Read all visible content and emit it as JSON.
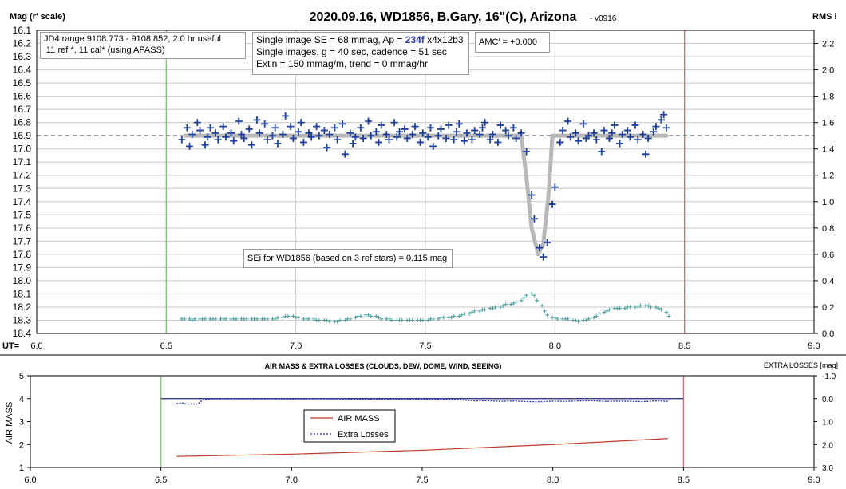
{
  "chart_data": [
    {
      "type": "scatter",
      "title": "2020.09.16, WD1856, B.Gary, 16\"(C), Arizona",
      "version": "- v0916",
      "ylabel_left": "Mag (r' scale)",
      "ylabel_right": "RMS i",
      "xlabel": "UT=",
      "xlim": [
        6.0,
        9.0
      ],
      "x_ticks": [
        "6.0",
        "6.5",
        "7.0",
        "7.5",
        "8.0",
        "8.5",
        "9.0"
      ],
      "ylim_left": [
        16.1,
        18.4
      ],
      "y_ticks_left": [
        "16.1",
        "16.2",
        "16.3",
        "16.4",
        "16.5",
        "16.6",
        "16.7",
        "16.8",
        "16.9",
        "17.0",
        "17.1",
        "17.2",
        "17.3",
        "17.4",
        "17.5",
        "17.6",
        "17.7",
        "17.8",
        "17.9",
        "18.0",
        "18.1",
        "18.2",
        "18.3",
        "18.4"
      ],
      "ylim_right": [
        0.0,
        2.3
      ],
      "y_ticks_right": [
        "0.0",
        "0.2",
        "0.4",
        "0.6",
        "0.8",
        "1.0",
        "1.2",
        "1.4",
        "1.6",
        "1.8",
        "2.0",
        "2.2"
      ],
      "grid": true,
      "vlines": [
        {
          "x": 6.5,
          "color": "#7fc46e"
        },
        {
          "x": 8.5,
          "color": "#e06a6a"
        }
      ],
      "hline": {
        "y": 16.9,
        "style": "dashed"
      },
      "model": {
        "color": "#b8b8b8",
        "x": [
          6.57,
          7.87,
          7.89,
          7.91,
          7.935,
          7.955,
          7.975,
          7.99,
          8.43
        ],
        "y": [
          16.9,
          16.9,
          17.22,
          17.6,
          17.8,
          17.72,
          17.35,
          16.9,
          16.9
        ]
      },
      "series": [
        {
          "name": "mag",
          "marker": "plus",
          "color": "#1f3f9e",
          "x": [
            6.56,
            6.58,
            6.59,
            6.6,
            6.62,
            6.63,
            6.65,
            6.66,
            6.67,
            6.69,
            6.7,
            6.72,
            6.73,
            6.75,
            6.76,
            6.78,
            6.79,
            6.8,
            6.82,
            6.83,
            6.85,
            6.86,
            6.88,
            6.89,
            6.91,
            6.92,
            6.93,
            6.95,
            6.96,
            6.98,
            6.99,
            7.01,
            7.02,
            7.03,
            7.05,
            7.06,
            7.08,
            7.09,
            7.11,
            7.12,
            7.13,
            7.15,
            7.16,
            7.18,
            7.19,
            7.21,
            7.22,
            7.23,
            7.25,
            7.26,
            7.28,
            7.29,
            7.31,
            7.32,
            7.33,
            7.35,
            7.36,
            7.38,
            7.39,
            7.4,
            7.42,
            7.43,
            7.45,
            7.46,
            7.48,
            7.49,
            7.51,
            7.52,
            7.53,
            7.55,
            7.56,
            7.58,
            7.59,
            7.61,
            7.62,
            7.63,
            7.65,
            7.66,
            7.68,
            7.69,
            7.71,
            7.72,
            7.73,
            7.75,
            7.76,
            7.78,
            7.79,
            7.81,
            7.82,
            7.84,
            7.85,
            7.87,
            7.89,
            7.91,
            7.92,
            7.94,
            7.955,
            7.97,
            7.99,
            8.0,
            8.02,
            8.03,
            8.05,
            8.06,
            8.08,
            8.09,
            8.11,
            8.12,
            8.13,
            8.15,
            8.16,
            8.18,
            8.19,
            8.21,
            8.22,
            8.23,
            8.25,
            8.26,
            8.28,
            8.29,
            8.31,
            8.32,
            8.34,
            8.35,
            8.36,
            8.38,
            8.39,
            8.41,
            8.42,
            8.43
          ],
          "y": [
            16.93,
            16.84,
            16.98,
            16.89,
            16.8,
            16.86,
            16.97,
            16.91,
            16.84,
            16.88,
            16.93,
            16.83,
            16.91,
            16.88,
            16.94,
            16.79,
            16.89,
            16.92,
            16.85,
            16.97,
            16.78,
            16.88,
            16.81,
            16.93,
            16.9,
            16.84,
            16.96,
            16.89,
            16.75,
            16.83,
            16.92,
            16.87,
            16.8,
            16.95,
            16.88,
            16.91,
            16.83,
            16.9,
            16.86,
            16.99,
            16.89,
            16.84,
            16.93,
            16.81,
            17.04,
            16.88,
            16.96,
            16.91,
            16.84,
            16.92,
            16.79,
            16.9,
            16.87,
            16.95,
            16.82,
            16.89,
            16.93,
            16.8,
            16.91,
            16.87,
            16.85,
            16.92,
            16.89,
            16.83,
            16.95,
            16.88,
            16.91,
            16.84,
            16.98,
            16.9,
            16.85,
            16.92,
            16.82,
            16.93,
            16.87,
            16.81,
            16.94,
            16.88,
            16.93,
            16.86,
            16.89,
            16.84,
            16.8,
            16.93,
            16.89,
            16.95,
            16.82,
            16.86,
            16.9,
            16.84,
            16.92,
            16.88,
            17.02,
            17.35,
            17.53,
            17.75,
            17.82,
            17.71,
            17.42,
            17.29,
            16.95,
            16.86,
            16.79,
            16.91,
            16.88,
            16.94,
            16.81,
            16.92,
            16.9,
            16.88,
            16.93,
            17.02,
            16.86,
            16.92,
            16.88,
            16.82,
            16.96,
            16.89,
            16.86,
            16.91,
            16.82,
            16.93,
            16.89,
            17.04,
            16.92,
            16.87,
            16.83,
            16.78,
            16.74,
            16.84
          ]
        },
        {
          "name": "RMS",
          "marker": "small-plus",
          "color": "#4a9e9e",
          "axis": "right",
          "x": [
            6.56,
            6.57,
            6.59,
            6.6,
            6.61,
            6.63,
            6.64,
            6.65,
            6.67,
            6.68,
            6.69,
            6.71,
            6.72,
            6.73,
            6.75,
            6.76,
            6.77,
            6.79,
            6.8,
            6.81,
            6.83,
            6.84,
            6.85,
            6.87,
            6.88,
            6.89,
            6.91,
            6.92,
            6.93,
            6.95,
            6.96,
            6.97,
            6.99,
            7.0,
            7.01,
            7.03,
            7.04,
            7.05,
            7.07,
            7.08,
            7.09,
            7.11,
            7.12,
            7.13,
            7.15,
            7.16,
            7.17,
            7.19,
            7.2,
            7.21,
            7.23,
            7.24,
            7.25,
            7.27,
            7.28,
            7.29,
            7.31,
            7.32,
            7.33,
            7.35,
            7.36,
            7.37,
            7.39,
            7.4,
            7.41,
            7.43,
            7.44,
            7.45,
            7.47,
            7.48,
            7.49,
            7.51,
            7.52,
            7.53,
            7.55,
            7.56,
            7.57,
            7.59,
            7.6,
            7.61,
            7.63,
            7.64,
            7.65,
            7.67,
            7.68,
            7.69,
            7.71,
            7.72,
            7.73,
            7.75,
            7.76,
            7.77,
            7.79,
            7.8,
            7.81,
            7.83,
            7.84,
            7.85,
            7.87,
            7.88,
            7.89,
            7.91,
            7.92,
            7.93,
            7.95,
            7.96,
            7.97,
            7.99,
            8.0,
            8.01,
            8.03,
            8.04,
            8.05,
            8.07,
            8.08,
            8.09,
            8.11,
            8.12,
            8.13,
            8.15,
            8.16,
            8.17,
            8.19,
            8.2,
            8.21,
            8.23,
            8.24,
            8.25,
            8.27,
            8.28,
            8.29,
            8.31,
            8.32,
            8.33,
            8.35,
            8.36,
            8.37,
            8.39,
            8.4,
            8.41,
            8.43,
            8.44
          ],
          "y": [
            0.11,
            0.11,
            0.11,
            0.1,
            0.11,
            0.11,
            0.11,
            0.11,
            0.11,
            0.11,
            0.11,
            0.11,
            0.11,
            0.11,
            0.11,
            0.11,
            0.11,
            0.11,
            0.11,
            0.11,
            0.11,
            0.11,
            0.11,
            0.11,
            0.11,
            0.11,
            0.11,
            0.11,
            0.12,
            0.12,
            0.13,
            0.13,
            0.13,
            0.12,
            0.12,
            0.11,
            0.11,
            0.11,
            0.11,
            0.1,
            0.1,
            0.1,
            0.1,
            0.09,
            0.09,
            0.09,
            0.1,
            0.1,
            0.11,
            0.11,
            0.12,
            0.13,
            0.13,
            0.14,
            0.14,
            0.13,
            0.13,
            0.12,
            0.11,
            0.11,
            0.11,
            0.1,
            0.1,
            0.1,
            0.1,
            0.1,
            0.1,
            0.1,
            0.1,
            0.1,
            0.1,
            0.1,
            0.11,
            0.11,
            0.11,
            0.12,
            0.12,
            0.12,
            0.12,
            0.13,
            0.13,
            0.14,
            0.15,
            0.15,
            0.16,
            0.17,
            0.17,
            0.18,
            0.18,
            0.19,
            0.19,
            0.2,
            0.2,
            0.21,
            0.22,
            0.22,
            0.23,
            0.24,
            0.25,
            0.27,
            0.29,
            0.3,
            0.29,
            0.25,
            0.21,
            0.17,
            0.14,
            0.12,
            0.12,
            0.11,
            0.11,
            0.11,
            0.11,
            0.1,
            0.1,
            0.09,
            0.1,
            0.1,
            0.11,
            0.12,
            0.13,
            0.15,
            0.16,
            0.17,
            0.18,
            0.19,
            0.19,
            0.19,
            0.19,
            0.2,
            0.2,
            0.2,
            0.2,
            0.21,
            0.21,
            0.21,
            0.2,
            0.2,
            0.19,
            0.18,
            0.16,
            0.13
          ]
        }
      ],
      "annotations": {
        "jd_box": [
          "JD4 range 9108.773 - 9108.852, 2.0 hr useful",
          "11 ref *, 11 cal* (using APASS)"
        ],
        "se_box": {
          "line1_pre": "Single image SE = 68 mmag, Ap = ",
          "line1_ap": "234f",
          "line1_post": " x4x12b3",
          "line2": "Single images, g = 40 sec, cadence = 51 sec",
          "line3": "Ext'n = 150 mmag/m, trend = 0 mmag/hr"
        },
        "amc_box": "AMC' = +0.000",
        "sei_box": "SEi for WD1856 (based on 3 ref stars) = 0.115 mag"
      }
    },
    {
      "type": "line",
      "title": "AIR MASS & EXTRA LOSSES (CLOUDS, DEW, DOME, WIND, SEEING)",
      "ylabel_left": "AIR MASS",
      "ylabel_right": "EXTRA LOSSES [mag]",
      "xlim": [
        6.0,
        9.0
      ],
      "x_ticks": [
        "6.0",
        "6.5",
        "7.0",
        "7.5",
        "8.0",
        "8.5",
        "9.0"
      ],
      "ylim_left": [
        1,
        5
      ],
      "y_ticks_left": [
        "1",
        "2",
        "3",
        "4",
        "5"
      ],
      "ylim_right": [
        3.0,
        -1.0
      ],
      "y_ticks_right": [
        "-1.0",
        "0.0",
        "1.0",
        "2.0",
        "3.0"
      ],
      "grid": false,
      "vlines": [
        {
          "x": 6.5,
          "color": "#7fc46e"
        },
        {
          "x": 8.5,
          "color": "#e06a6a"
        }
      ],
      "hline": {
        "y": 4.0,
        "color": "#1a237e"
      },
      "legend": {
        "placement": "center-left",
        "entries": [
          "AIR MASS",
          "Extra Losses"
        ]
      },
      "series": [
        {
          "name": "AIR MASS",
          "color": "#c0392b",
          "style": "solid",
          "x": [
            6.56,
            7.0,
            7.5,
            8.0,
            8.44
          ],
          "y": [
            1.48,
            1.58,
            1.75,
            2.0,
            2.26
          ]
        },
        {
          "name": "Extra Losses",
          "color": "#2a35a8",
          "style": "dotted",
          "x": [
            6.56,
            6.58,
            6.6,
            6.62,
            6.64,
            6.66,
            6.68,
            6.72,
            6.8,
            6.9,
            7.0,
            7.1,
            7.2,
            7.3,
            7.4,
            7.5,
            7.6,
            7.65,
            7.7,
            7.75,
            7.8,
            7.85,
            7.9,
            7.95,
            8.0,
            8.05,
            8.1,
            8.15,
            8.2,
            8.25,
            8.3,
            8.35,
            8.4,
            8.44
          ],
          "y": [
            0.22,
            0.18,
            0.25,
            0.23,
            0.24,
            0.06,
            0.02,
            0.01,
            0.01,
            0.01,
            0.02,
            0.01,
            0.02,
            0.03,
            0.02,
            0.03,
            0.04,
            0.05,
            0.1,
            0.09,
            0.12,
            0.1,
            0.13,
            0.14,
            0.11,
            0.12,
            0.1,
            0.09,
            0.12,
            0.11,
            0.12,
            0.13,
            0.1,
            0.12
          ]
        }
      ]
    }
  ]
}
